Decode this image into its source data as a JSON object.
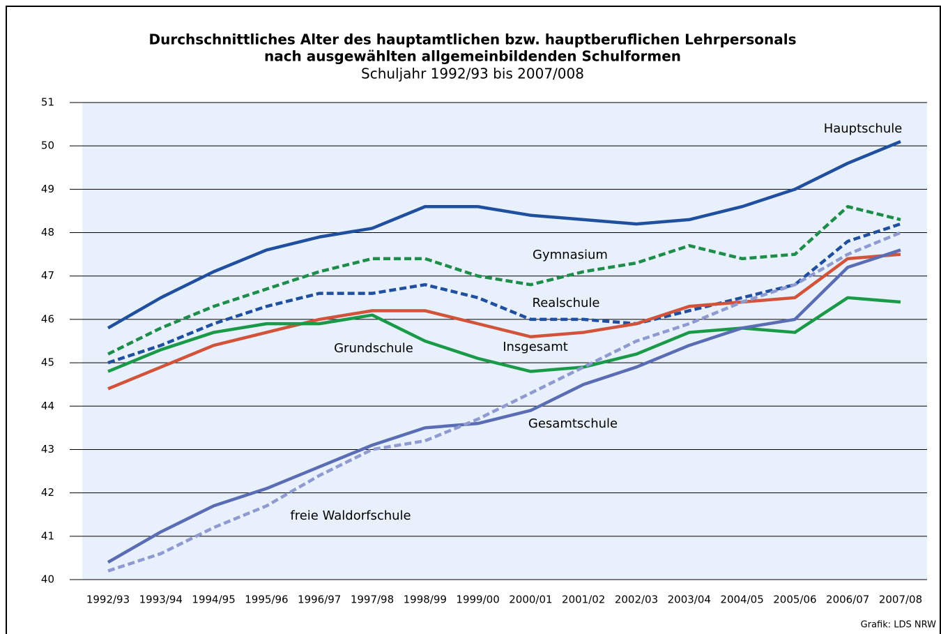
{
  "chart_data": {
    "type": "line",
    "title": [
      "Durchschnittliches Alter des hauptamtlichen bzw. hauptberuflichen Lehrpersonals",
      "nach ausgewählten allgemeinbildenden Schulformen"
    ],
    "subtitle": "Schuljahr 1992/93 bis 2007/008",
    "source": "Grafik: LDS NRW",
    "categories": [
      "1992/93",
      "1993/94",
      "1994/95",
      "1995/96",
      "1996/97",
      "1997/98",
      "1998/99",
      "1999/00",
      "2000/01",
      "2001/02",
      "2002/03",
      "2003/04",
      "2004/05",
      "2005/06",
      "2006/07",
      "2007/08"
    ],
    "ylim": [
      40,
      51
    ],
    "yticks": [
      40,
      41,
      42,
      43,
      44,
      45,
      46,
      47,
      48,
      49,
      50,
      51
    ],
    "grid": true,
    "series": [
      {
        "name": "Hauptschule",
        "color": "#1f4f9e",
        "dashed": false,
        "values": [
          45.8,
          46.5,
          47.1,
          47.6,
          47.9,
          48.1,
          48.6,
          48.6,
          48.4,
          48.3,
          48.2,
          48.3,
          48.6,
          49.0,
          49.6,
          50.1
        ]
      },
      {
        "name": "Gymnasium",
        "color": "#1e8c4a",
        "dashed": true,
        "values": [
          45.2,
          45.8,
          46.3,
          46.7,
          47.1,
          47.4,
          47.4,
          47.0,
          46.8,
          47.1,
          47.3,
          47.7,
          47.4,
          47.5,
          48.6,
          48.3
        ]
      },
      {
        "name": "Realschule",
        "color": "#1f4f9e",
        "dashed": true,
        "values": [
          45.0,
          45.4,
          45.9,
          46.3,
          46.6,
          46.6,
          46.8,
          46.5,
          46.0,
          46.0,
          45.9,
          46.2,
          46.5,
          46.8,
          47.8,
          48.2
        ]
      },
      {
        "name": "Insgesamt",
        "color": "#d2523a",
        "dashed": false,
        "values": [
          44.4,
          44.9,
          45.4,
          45.7,
          46.0,
          46.2,
          46.2,
          45.9,
          45.6,
          45.7,
          45.9,
          46.3,
          46.4,
          46.5,
          47.4,
          47.5
        ]
      },
      {
        "name": "Grundschule",
        "color": "#1a9a48",
        "dashed": false,
        "values": [
          44.8,
          45.3,
          45.7,
          45.9,
          45.9,
          46.1,
          45.5,
          45.1,
          44.8,
          44.9,
          45.2,
          45.7,
          45.8,
          45.7,
          46.5,
          46.4
        ]
      },
      {
        "name": "Gesamtschule",
        "color": "#5a6db4",
        "dashed": false,
        "values": [
          40.4,
          41.1,
          41.7,
          42.1,
          42.6,
          43.1,
          43.5,
          43.6,
          43.9,
          44.5,
          44.9,
          45.4,
          45.8,
          46.0,
          47.2,
          47.6
        ]
      },
      {
        "name": "freie Waldorfschule",
        "color": "#8f9ad0",
        "dashed": true,
        "values": [
          40.2,
          40.6,
          41.2,
          41.7,
          42.4,
          43.0,
          43.2,
          43.7,
          44.3,
          44.9,
          45.5,
          45.9,
          46.4,
          46.8,
          47.5,
          48.0
        ]
      }
    ]
  }
}
